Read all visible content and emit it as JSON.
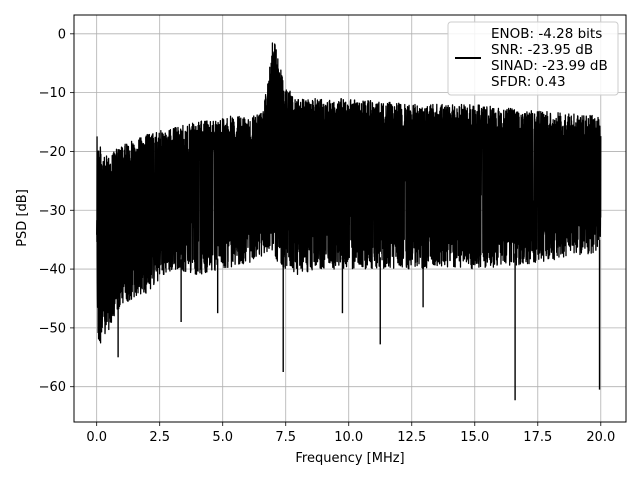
{
  "chart_data": {
    "type": "line",
    "xlabel": "Frequency [MHz]",
    "ylabel": "PSD [dB]",
    "xlim": [
      -0.9,
      21.0
    ],
    "ylim": [
      -66,
      3.2
    ],
    "xticks": [
      0.0,
      2.5,
      5.0,
      7.5,
      10.0,
      12.5,
      15.0,
      17.5,
      20.0
    ],
    "xtick_labels": [
      "0.0",
      "2.5",
      "5.0",
      "7.5",
      "10.0",
      "12.5",
      "15.0",
      "17.5",
      "20.0"
    ],
    "yticks": [
      0,
      -10,
      -20,
      -30,
      -40,
      -50,
      -60
    ],
    "ytick_labels": [
      "0",
      "−10",
      "−20",
      "−30",
      "−40",
      "−50",
      "−60"
    ],
    "grid": true,
    "legend_position": "top-right",
    "series": [
      {
        "name": "ENOB: -4.28 bits",
        "color": "#000000",
        "x_range": [
          0,
          20
        ],
        "envelope": {
          "x": [
            0.0,
            0.05,
            0.3,
            1.0,
            2.0,
            3.0,
            4.0,
            5.0,
            6.0,
            6.5,
            6.8,
            7.0,
            7.2,
            7.5,
            8.0,
            9.0,
            10.0,
            12.5,
            15.0,
            17.5,
            20.0
          ],
          "upper": [
            -11,
            -18,
            -21,
            -19,
            -17,
            -16,
            -15,
            -14,
            -14,
            -13,
            -7,
            0,
            -4,
            -9,
            -11,
            -11,
            -11,
            -12,
            -12,
            -13,
            -14
          ],
          "lower": [
            -36,
            -53,
            -52,
            -46,
            -44,
            -40,
            -41,
            -40,
            -39,
            -38,
            -37,
            -37,
            -39,
            -40,
            -41,
            -40,
            -40,
            -40,
            -40,
            -39,
            -37
          ]
        },
        "spikes": [
          {
            "x": 7.4,
            "y": -57.5
          },
          {
            "x": 11.25,
            "y": -52.8
          },
          {
            "x": 16.6,
            "y": -62.3
          },
          {
            "x": 19.95,
            "y": -60.5
          },
          {
            "x": 0.85,
            "y": -55
          },
          {
            "x": 3.35,
            "y": -49
          },
          {
            "x": 4.8,
            "y": -47.5
          },
          {
            "x": 12.95,
            "y": -46.5
          },
          {
            "x": 9.75,
            "y": -47.5
          }
        ]
      }
    ],
    "legend_entries": [
      "ENOB: -4.28 bits",
      "SNR: -23.95 dB",
      "SINAD: -23.99 dB",
      "SFDR: 0.43"
    ]
  }
}
